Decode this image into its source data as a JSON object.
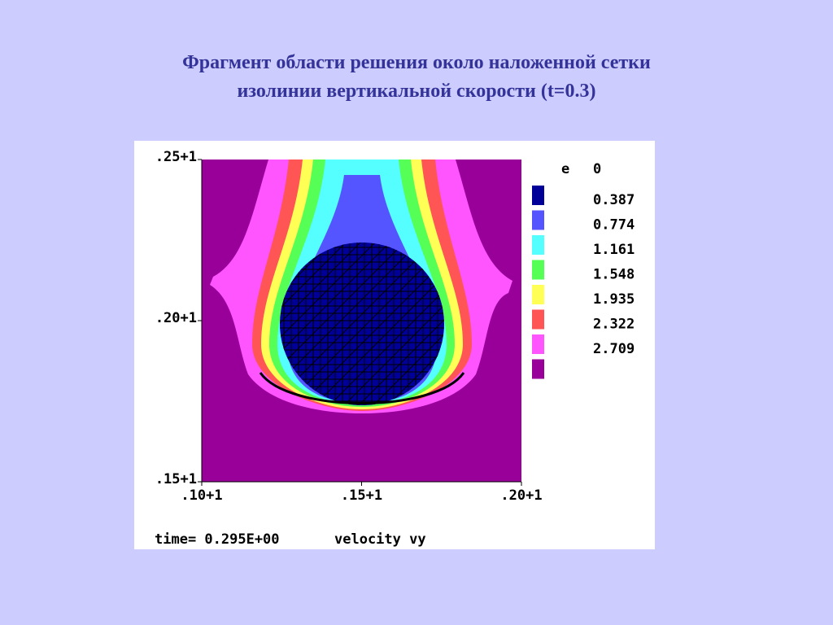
{
  "chart_data": {
    "type": "contour",
    "title": [
      "Фрагмент области решения около наложенной сетки",
      "изолинии вертикальной скорости (t=0.3)"
    ],
    "xlim": [
      1.0,
      2.0
    ],
    "ylim": [
      1.5,
      2.5
    ],
    "xticks": [
      {
        "value": 1.0,
        "label": ".10+1"
      },
      {
        "value": 1.5,
        "label": ".15+1"
      },
      {
        "value": 2.0,
        "label": ".20+1"
      }
    ],
    "yticks": [
      {
        "value": 1.5,
        "label": ".15+1"
      },
      {
        "value": 2.0,
        "label": ".20+1"
      },
      {
        "value": 2.5,
        "label": ".25+1"
      }
    ],
    "legend_header": [
      "e",
      "0"
    ],
    "levels": [
      0.387,
      0.774,
      1.161,
      1.548,
      1.935,
      2.322,
      2.709
    ],
    "colors": [
      "#000099",
      "#5555ff",
      "#55ffff",
      "#55ff55",
      "#ffff55",
      "#ff5555",
      "#ff55ff",
      "#990099"
    ],
    "footer": [
      "time= 0.295E+00",
      "velocity vy"
    ]
  }
}
